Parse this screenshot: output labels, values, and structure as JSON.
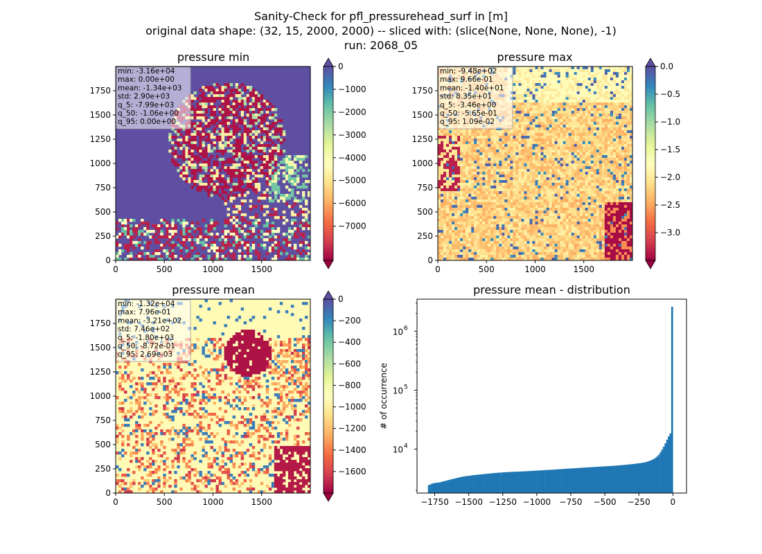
{
  "figure": {
    "title_lines": [
      "Sanity-Check for pfl_pressurehead_surf in [m]",
      "original data shape: (32, 15, 2000, 2000) -- sliced with: (slice(None, None, None), -1)",
      "run: 2068_05"
    ]
  },
  "chart_data": [
    {
      "type": "heatmap",
      "title": "pressure min",
      "xlim": [
        0,
        2000
      ],
      "ylim": [
        0,
        2000
      ],
      "xticks": [
        "0",
        "500",
        "1000",
        "1500"
      ],
      "yticks": [
        "0",
        "250",
        "500",
        "750",
        "1000",
        "1250",
        "1500",
        "1750"
      ],
      "colorbar": {
        "colormap": "Spectral",
        "range": [
          -8500,
          0
        ],
        "ticks": [
          "0",
          "−1000",
          "−2000",
          "−3000",
          "−4000",
          "−5000",
          "−6000",
          "−7000"
        ],
        "tick_values": [
          0,
          -1000,
          -2000,
          -3000,
          -4000,
          -5000,
          -6000,
          -7000
        ],
        "extend": "both"
      },
      "stats": [
        "min: -3.16e+04",
        "max: 0.00e+00",
        "mean: -1.34e+03",
        "std: 2.90e+03",
        "q_5: -7.99e+03",
        "q_50: -1.06e+00",
        "q_95: 0.00e+00"
      ]
    },
    {
      "type": "heatmap",
      "title": "pressure max",
      "xlim": [
        0,
        2000
      ],
      "ylim": [
        0,
        2000
      ],
      "xticks": [
        "0",
        "500",
        "1000",
        "1500"
      ],
      "yticks": [
        "0",
        "250",
        "500",
        "750",
        "1000",
        "1250",
        "1500",
        "1750"
      ],
      "colorbar": {
        "colormap": "Spectral",
        "range": [
          -3.5,
          0
        ],
        "ticks": [
          "0.0",
          "−0.5",
          "−1.0",
          "−1.5",
          "−2.0",
          "−2.5",
          "−3.0"
        ],
        "tick_values": [
          0,
          -0.5,
          -1.0,
          -1.5,
          -2.0,
          -2.5,
          -3.0
        ],
        "extend": "both"
      },
      "stats": [
        "min: -9.48e+02",
        "max: 9.66e-01",
        "mean: -1.40e+01",
        "std: 8.35e+01",
        "q_5: -3.46e+00",
        "q_50: -5.65e-01",
        "q_95: 1.09e-02"
      ]
    },
    {
      "type": "heatmap",
      "title": "pressure mean",
      "xlim": [
        0,
        2000
      ],
      "ylim": [
        0,
        2000
      ],
      "xticks": [
        "0",
        "500",
        "1000",
        "1500"
      ],
      "yticks": [
        "0",
        "250",
        "500",
        "750",
        "1000",
        "1250",
        "1500",
        "1750"
      ],
      "colorbar": {
        "colormap": "Spectral",
        "range": [
          -1800,
          0
        ],
        "ticks": [
          "0",
          "−200",
          "−400",
          "−600",
          "−800",
          "−1000",
          "−1200",
          "−1400",
          "−1600"
        ],
        "tick_values": [
          0,
          -200,
          -400,
          -600,
          -800,
          -1000,
          -1200,
          -1400,
          -1600
        ],
        "extend": "both"
      },
      "stats": [
        "min: -1.32e+04",
        "max: 7.96e-01",
        "mean: -3.21e+02",
        "std: 7.46e+02",
        "q_5: -1.80e+03",
        "q_50: -8.72e-01",
        "q_95: 2.69e-03"
      ]
    },
    {
      "type": "bar",
      "title": "pressure mean - distribution",
      "ylabel": "# of occurrence",
      "xlabel": "",
      "yscale": "log",
      "xlim": [
        -1880,
        100
      ],
      "ylim": [
        1800,
        3500000
      ],
      "xticks": [
        "−1750",
        "−1500",
        "−1250",
        "−1000",
        "−750",
        "−500",
        "−250",
        "0"
      ],
      "xtick_values": [
        -1750,
        -1500,
        -1250,
        -1000,
        -750,
        -500,
        -250,
        0
      ],
      "yticks": [
        "10",
        "10",
        "10"
      ],
      "ytick_exponents": [
        "4",
        "5",
        "6"
      ],
      "ytick_values": [
        10000,
        100000,
        1000000
      ],
      "bin_range": [
        -1800,
        0
      ],
      "color": "#1f77b4",
      "counts": [
        2450,
        2520,
        2600,
        2650,
        2680,
        2700,
        2720,
        2750,
        2800,
        2850,
        2900,
        2950,
        3000,
        3050,
        3100,
        3150,
        3200,
        3250,
        3300,
        3350,
        3400,
        3430,
        3480,
        3500,
        3530,
        3560,
        3600,
        3630,
        3650,
        3680,
        3700,
        3720,
        3750,
        3780,
        3800,
        3830,
        3850,
        3870,
        3900,
        3920,
        3950,
        3970,
        4000,
        4000,
        4020,
        4050,
        4050,
        4080,
        4100,
        4100,
        4120,
        4130,
        4150,
        4150,
        4170,
        4180,
        4200,
        4200,
        4220,
        4230,
        4250,
        4260,
        4280,
        4300,
        4320,
        4330,
        4350,
        4360,
        4380,
        4400,
        4420,
        4430,
        4450,
        4460,
        4480,
        4500,
        4520,
        4540,
        4560,
        4580,
        4600,
        4620,
        4640,
        4660,
        4680,
        4700,
        4720,
        4740,
        4760,
        4780,
        4800,
        4820,
        4840,
        4860,
        4880,
        4900,
        4920,
        4940,
        4960,
        4980,
        5000,
        5020,
        5040,
        5060,
        5080,
        5100,
        5120,
        5140,
        5160,
        5180,
        5200,
        5220,
        5250,
        5280,
        5300,
        5330,
        5360,
        5400,
        5430,
        5460,
        5500,
        5540,
        5580,
        5620,
        5660,
        5700,
        5750,
        5800,
        5860,
        5920,
        6000,
        6100,
        6250,
        6400,
        6600,
        6800,
        7100,
        7500,
        8000,
        8800,
        9800,
        11000,
        12500,
        14500,
        16500,
        18500,
        2600000
      ]
    }
  ]
}
